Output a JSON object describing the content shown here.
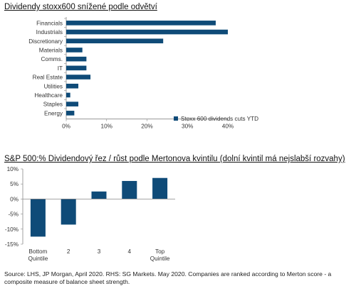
{
  "chart_data": [
    {
      "type": "bar",
      "orientation": "horizontal",
      "title": "Dividendy stoxx600 snížené podle odvětví",
      "categories": [
        "Financials",
        "Industrials",
        "Discretionary",
        "Materials",
        "Comms.",
        "IT",
        "Real Estate",
        "Utilities",
        "Healthcare",
        "Staples",
        "Energy"
      ],
      "series": [
        {
          "name": "Stoxx 600 dividends cuts YTD",
          "values": [
            37,
            40,
            24,
            4,
            5,
            5,
            6,
            3,
            1,
            3,
            2
          ]
        }
      ],
      "xlim": [
        0,
        40
      ],
      "ticks": [
        0,
        10,
        20,
        30,
        40
      ],
      "tick_labels": [
        "0%",
        "10%",
        "20%",
        "30%",
        "40%"
      ],
      "legend": "bottom-right",
      "grid": false,
      "color": "#0f4b78"
    },
    {
      "type": "bar",
      "title": "S&P 500:% Dividendový řez / růst podle Mertonova kvintilu (dolní kvintil má nejslabší rozvahy)",
      "categories": [
        [
          "Bottom",
          "Quintile"
        ],
        [
          "2"
        ],
        [
          "3"
        ],
        [
          "4"
        ],
        [
          "Top",
          "Quintile"
        ]
      ],
      "series": [
        {
          "values": [
            -12.5,
            -8.5,
            2.5,
            6,
            7
          ]
        }
      ],
      "ylim": [
        -15,
        10
      ],
      "ticks": [
        -15,
        -10,
        -5,
        0,
        5,
        10
      ],
      "tick_labels": [
        "-15%",
        "-10%",
        "-5%",
        "0%",
        "5%",
        "10%"
      ],
      "grid": false,
      "color": "#0f4b78"
    }
  ],
  "source_note": "Source: LHS, JP Morgan, April 2020. RHS: SG Markets. May 2020. Companies are ranked according to Merton score - a composite measure of balance sheet strength."
}
